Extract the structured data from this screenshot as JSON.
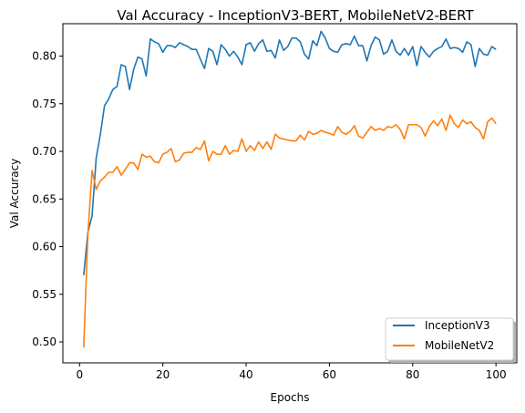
{
  "chart_data": {
    "type": "line",
    "title": "Val Accuracy - InceptionV3-BERT, MobileNetV2-BERT",
    "xlabel": "Epochs",
    "ylabel": "Val Accuracy",
    "xlim": [
      -4.0,
      105.0
    ],
    "ylim": [
      0.478,
      0.834
    ],
    "x_ticks": [
      "0",
      "20",
      "40",
      "60",
      "80",
      "100"
    ],
    "y_ticks": [
      "0.50",
      "0.55",
      "0.60",
      "0.65",
      "0.70",
      "0.75",
      "0.80"
    ],
    "grid": false,
    "legend_position": "lower-right",
    "series": [
      {
        "name": "InceptionV3",
        "color": "#1f77b4",
        "x": [
          1,
          2,
          3,
          4,
          5,
          6,
          7,
          8,
          9,
          10,
          11,
          12,
          13,
          14,
          15,
          16,
          17,
          18,
          19,
          20,
          21,
          22,
          23,
          24,
          25,
          26,
          27,
          28,
          29,
          30,
          31,
          32,
          33,
          34,
          35,
          36,
          37,
          38,
          39,
          40,
          41,
          42,
          43,
          44,
          45,
          46,
          47,
          48,
          49,
          50,
          51,
          52,
          53,
          54,
          55,
          56,
          57,
          58,
          59,
          60,
          61,
          62,
          63,
          64,
          65,
          66,
          67,
          68,
          69,
          70,
          71,
          72,
          73,
          74,
          75,
          76,
          77,
          78,
          79,
          80,
          81,
          82,
          83,
          84,
          85,
          86,
          87,
          88,
          89,
          90,
          91,
          92,
          93,
          94,
          95,
          96,
          97,
          98,
          99,
          100
        ],
        "values": [
          0.57,
          0.615,
          0.632,
          0.693,
          0.718,
          0.748,
          0.755,
          0.765,
          0.768,
          0.791,
          0.789,
          0.765,
          0.786,
          0.799,
          0.797,
          0.779,
          0.818,
          0.815,
          0.813,
          0.804,
          0.811,
          0.811,
          0.809,
          0.814,
          0.812,
          0.81,
          0.807,
          0.807,
          0.797,
          0.787,
          0.808,
          0.805,
          0.791,
          0.812,
          0.807,
          0.8,
          0.805,
          0.799,
          0.791,
          0.812,
          0.814,
          0.805,
          0.813,
          0.817,
          0.805,
          0.806,
          0.798,
          0.817,
          0.806,
          0.81,
          0.819,
          0.819,
          0.815,
          0.802,
          0.797,
          0.816,
          0.811,
          0.826,
          0.819,
          0.808,
          0.805,
          0.804,
          0.812,
          0.813,
          0.812,
          0.821,
          0.811,
          0.811,
          0.795,
          0.811,
          0.82,
          0.817,
          0.802,
          0.805,
          0.817,
          0.805,
          0.801,
          0.808,
          0.801,
          0.81,
          0.79,
          0.81,
          0.804,
          0.799,
          0.805,
          0.808,
          0.81,
          0.818,
          0.808,
          0.809,
          0.808,
          0.804,
          0.815,
          0.812,
          0.789,
          0.808,
          0.802,
          0.801,
          0.81,
          0.807
        ]
      },
      {
        "name": "MobileNetV2",
        "color": "#ff7f0e",
        "x": [
          1,
          2,
          3,
          4,
          5,
          6,
          7,
          8,
          9,
          10,
          11,
          12,
          13,
          14,
          15,
          16,
          17,
          18,
          19,
          20,
          21,
          22,
          23,
          24,
          25,
          26,
          27,
          28,
          29,
          30,
          31,
          32,
          33,
          34,
          35,
          36,
          37,
          38,
          39,
          40,
          41,
          42,
          43,
          44,
          45,
          46,
          47,
          48,
          49,
          50,
          51,
          52,
          53,
          54,
          55,
          56,
          57,
          58,
          59,
          60,
          61,
          62,
          63,
          64,
          65,
          66,
          67,
          68,
          69,
          70,
          71,
          72,
          73,
          74,
          75,
          76,
          77,
          78,
          79,
          80,
          81,
          82,
          83,
          84,
          85,
          86,
          87,
          88,
          89,
          90,
          91,
          92,
          93,
          94,
          95,
          96,
          97,
          98,
          99,
          100
        ],
        "values": [
          0.494,
          0.612,
          0.68,
          0.66,
          0.669,
          0.673,
          0.678,
          0.678,
          0.684,
          0.675,
          0.681,
          0.688,
          0.688,
          0.681,
          0.697,
          0.694,
          0.695,
          0.689,
          0.688,
          0.697,
          0.699,
          0.703,
          0.689,
          0.691,
          0.698,
          0.699,
          0.699,
          0.704,
          0.702,
          0.711,
          0.69,
          0.7,
          0.697,
          0.697,
          0.706,
          0.697,
          0.701,
          0.7,
          0.713,
          0.7,
          0.706,
          0.701,
          0.71,
          0.703,
          0.71,
          0.702,
          0.718,
          0.714,
          0.713,
          0.712,
          0.711,
          0.711,
          0.717,
          0.712,
          0.721,
          0.718,
          0.719,
          0.722,
          0.72,
          0.719,
          0.717,
          0.726,
          0.72,
          0.718,
          0.721,
          0.727,
          0.716,
          0.714,
          0.72,
          0.726,
          0.722,
          0.724,
          0.722,
          0.726,
          0.725,
          0.728,
          0.723,
          0.713,
          0.728,
          0.728,
          0.728,
          0.725,
          0.716,
          0.726,
          0.732,
          0.727,
          0.734,
          0.722,
          0.738,
          0.729,
          0.725,
          0.733,
          0.729,
          0.731,
          0.725,
          0.722,
          0.713,
          0.731,
          0.735,
          0.729
        ]
      }
    ]
  }
}
